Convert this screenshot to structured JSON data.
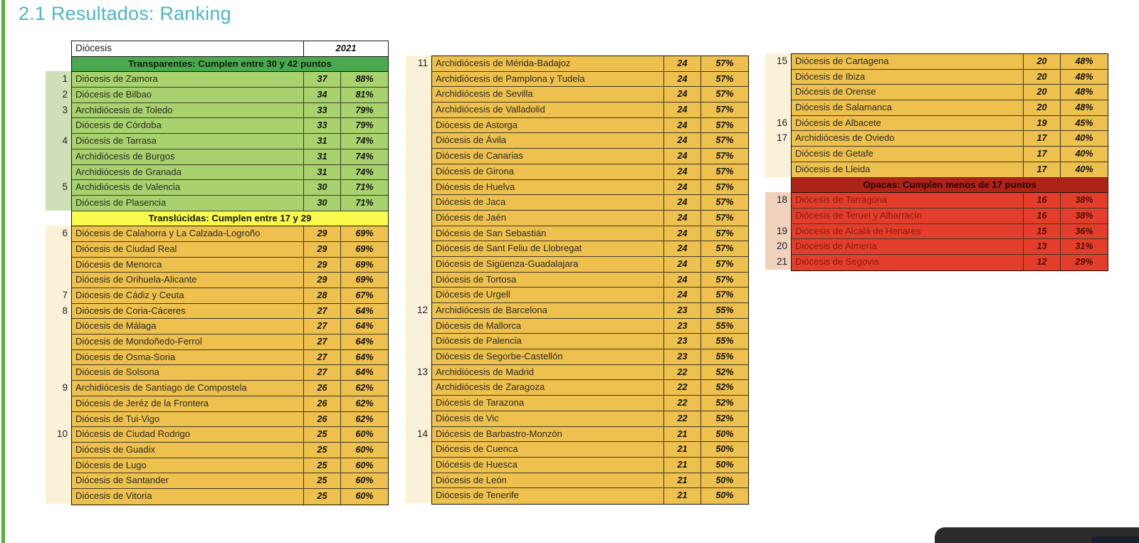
{
  "page": {
    "title": "2.1 Resultados: Ranking",
    "title_color": "#4cb5c8",
    "accent_bar_color": "#55b13e"
  },
  "tables": {
    "header": {
      "diocesis": "Diócesis",
      "year": "2021"
    },
    "sections": {
      "transparentes": {
        "label": "Transparentes: Cumplen entre 30 y 42 puntos",
        "class": "sec-green",
        "bg": "#4aa94e"
      },
      "translucidas": {
        "label": "Translúcidas: Cumplen entre 17 y 29",
        "class": "sec-yellow",
        "bg": "#fbfb4e"
      },
      "opacas": {
        "label": "Opacas: Cumplen menos de 17 puntos",
        "class": "sec-red",
        "bg": "#ae2317"
      }
    },
    "row_colors": {
      "green": "#a7d26e",
      "amber": "#eec04e",
      "red": "#e33d2b"
    },
    "columns": [
      {
        "name": "left",
        "segments": [
          {
            "type": "header"
          },
          {
            "type": "section",
            "section": "transparentes"
          },
          {
            "type": "rows",
            "class": "green",
            "gutter": "g-green",
            "rows": [
              {
                "rank": "1",
                "name": "Diócesis de Zamora",
                "score": "37",
                "pct": "88%"
              },
              {
                "rank": "2",
                "name": "Diócesis de Bilbao",
                "score": "34",
                "pct": "81%"
              },
              {
                "rank": "3",
                "name": "Archidiócesis de Toledo",
                "score": "33",
                "pct": "79%"
              },
              {
                "rank": "",
                "name": "Diócesis de Córdoba",
                "score": "33",
                "pct": "79%"
              },
              {
                "rank": "4",
                "name": "Diócesis de Tarrasa",
                "score": "31",
                "pct": "74%"
              },
              {
                "rank": "",
                "name": "Archidiócesis de Burgos",
                "score": "31",
                "pct": "74%"
              },
              {
                "rank": "",
                "name": "Archidiócesis de Granada",
                "score": "31",
                "pct": "74%"
              },
              {
                "rank": "5",
                "name": "Archidiócesis de Valencia",
                "score": "30",
                "pct": "71%"
              },
              {
                "rank": "",
                "name": "Diócesis de Plasencia",
                "score": "30",
                "pct": "71%"
              }
            ]
          },
          {
            "type": "section",
            "section": "translucidas"
          },
          {
            "type": "rows",
            "class": "amber",
            "gutter": "g-cream",
            "rows": [
              {
                "rank": "6",
                "name": "Diócesis de Calahorra y La Calzada-Logroño",
                "score": "29",
                "pct": "69%"
              },
              {
                "rank": "",
                "name": "Diócesis de Ciudad Real",
                "score": "29",
                "pct": "69%"
              },
              {
                "rank": "",
                "name": "Diócesis de Menorca",
                "score": "29",
                "pct": "69%"
              },
              {
                "rank": "",
                "name": "Diócesis de Orihuela-Alicante",
                "score": "29",
                "pct": "69%"
              },
              {
                "rank": "7",
                "name": "Diócesis de Cádiz y Ceuta",
                "score": "28",
                "pct": "67%"
              },
              {
                "rank": "8",
                "name": "Diócesis de Coria-Cáceres",
                "score": "27",
                "pct": "64%"
              },
              {
                "rank": "",
                "name": "Diócesis de Málaga",
                "score": "27",
                "pct": "64%"
              },
              {
                "rank": "",
                "name": "Diócesis de Mondoñedo-Ferrol",
                "score": "27",
                "pct": "64%"
              },
              {
                "rank": "",
                "name": "Diócesis de Osma-Soria",
                "score": "27",
                "pct": "64%"
              },
              {
                "rank": "",
                "name": "Diócesis de Solsona",
                "score": "27",
                "pct": "64%"
              },
              {
                "rank": "9",
                "name": "Archidiócesis de Santiago de Compostela",
                "score": "26",
                "pct": "62%"
              },
              {
                "rank": "",
                "name": "Diócesis de Jeréz de la Frontera",
                "score": "26",
                "pct": "62%"
              },
              {
                "rank": "",
                "name": "Diócesis de Tui-Vigo",
                "score": "26",
                "pct": "62%"
              },
              {
                "rank": "10",
                "name": "Diócesis de Ciudad Rodrigo",
                "score": "25",
                "pct": "60%"
              },
              {
                "rank": "",
                "name": "Diócesis de Guadix",
                "score": "25",
                "pct": "60%"
              },
              {
                "rank": "",
                "name": "Diócesis de Lugo",
                "score": "25",
                "pct": "60%"
              },
              {
                "rank": "",
                "name": "Diócesis de Santander",
                "score": "25",
                "pct": "60%"
              },
              {
                "rank": "",
                "name": "Diócesis de Vitoria",
                "score": "25",
                "pct": "60%"
              }
            ]
          }
        ]
      },
      {
        "name": "middle",
        "segments": [
          {
            "type": "rows",
            "class": "amber",
            "gutter": "g-cream",
            "rows": [
              {
                "rank": "11",
                "name": "Archidiócesis de Mérida-Badajoz",
                "score": "24",
                "pct": "57%"
              },
              {
                "rank": "",
                "name": "Archidiócesis de Pamplona y Tudela",
                "score": "24",
                "pct": "57%"
              },
              {
                "rank": "",
                "name": "Archidiócesis de Sevilla",
                "score": "24",
                "pct": "57%"
              },
              {
                "rank": "",
                "name": "Archidiócesis de Valladolid",
                "score": "24",
                "pct": "57%"
              },
              {
                "rank": "",
                "name": "Diócesis de Astorga",
                "score": "24",
                "pct": "57%"
              },
              {
                "rank": "",
                "name": "Diócesis de Ávila",
                "score": "24",
                "pct": "57%"
              },
              {
                "rank": "",
                "name": "Diócesis de Canarias",
                "score": "24",
                "pct": "57%"
              },
              {
                "rank": "",
                "name": "Diócesis de Girona",
                "score": "24",
                "pct": "57%"
              },
              {
                "rank": "",
                "name": "Diócesis de Huelva",
                "score": "24",
                "pct": "57%"
              },
              {
                "rank": "",
                "name": "Diócesis de Jaca",
                "score": "24",
                "pct": "57%"
              },
              {
                "rank": "",
                "name": "Diócesis de Jaén",
                "score": "24",
                "pct": "57%"
              },
              {
                "rank": "",
                "name": "Diócesis de San Sebastián",
                "score": "24",
                "pct": "57%"
              },
              {
                "rank": "",
                "name": "Diócesis de Sant Feliu de Llobregat",
                "score": "24",
                "pct": "57%"
              },
              {
                "rank": "",
                "name": "Diócesis de Sigüenza-Guadalajara",
                "score": "24",
                "pct": "57%"
              },
              {
                "rank": "",
                "name": "Diócesis de Tortosa",
                "score": "24",
                "pct": "57%"
              },
              {
                "rank": "",
                "name": "Diócesis de Urgell",
                "score": "24",
                "pct": "57%"
              },
              {
                "rank": "12",
                "name": "Archidiócesis de Barcelona",
                "score": "23",
                "pct": "55%"
              },
              {
                "rank": "",
                "name": "Diócesis de Mallorca",
                "score": "23",
                "pct": "55%"
              },
              {
                "rank": "",
                "name": "Diócesis de Palencia",
                "score": "23",
                "pct": "55%"
              },
              {
                "rank": "",
                "name": "Diócesis de Segorbe-Castellón",
                "score": "23",
                "pct": "55%"
              },
              {
                "rank": "13",
                "name": "Archidiócesis de Madrid",
                "score": "22",
                "pct": "52%"
              },
              {
                "rank": "",
                "name": "Archidiócesis de Zaragoza",
                "score": "22",
                "pct": "52%"
              },
              {
                "rank": "",
                "name": "Diócesis de Tarazona",
                "score": "22",
                "pct": "52%"
              },
              {
                "rank": "",
                "name": "Diócesis de Vic",
                "score": "22",
                "pct": "52%"
              },
              {
                "rank": "14",
                "name": "Diócesis de Barbastro-Monzón",
                "score": "21",
                "pct": "50%"
              },
              {
                "rank": "",
                "name": "Diócesis de Cuenca",
                "score": "21",
                "pct": "50%"
              },
              {
                "rank": "",
                "name": "Diócesis de Huesca",
                "score": "21",
                "pct": "50%"
              },
              {
                "rank": "",
                "name": "Diócesis de León",
                "score": "21",
                "pct": "50%"
              },
              {
                "rank": "",
                "name": "Diócesis de Tenerife",
                "score": "21",
                "pct": "50%"
              }
            ]
          }
        ]
      },
      {
        "name": "right",
        "segments": [
          {
            "type": "rows",
            "class": "amber",
            "gutter": "g-cream",
            "rows": [
              {
                "rank": "15",
                "name": "Diócesis de Cartagena",
                "score": "20",
                "pct": "48%"
              },
              {
                "rank": "",
                "name": "Diócesis de Ibiza",
                "score": "20",
                "pct": "48%"
              },
              {
                "rank": "",
                "name": "Diócesis de Orense",
                "score": "20",
                "pct": "48%"
              },
              {
                "rank": "",
                "name": "Diócesis de Salamanca",
                "score": "20",
                "pct": "48%"
              },
              {
                "rank": "16",
                "name": "Diócesis de Albacete",
                "score": "19",
                "pct": "45%"
              },
              {
                "rank": "17",
                "name": "Archidiócesis de Oviedo",
                "score": "17",
                "pct": "40%"
              },
              {
                "rank": "",
                "name": "Diócesis de Getafe",
                "score": "17",
                "pct": "40%"
              },
              {
                "rank": "",
                "name": "Diócesis de Lleida",
                "score": "17",
                "pct": "40%"
              }
            ]
          },
          {
            "type": "section",
            "section": "opacas"
          },
          {
            "type": "rows",
            "class": "red",
            "gutter": "g-pink",
            "rows": [
              {
                "rank": "18",
                "name": "Diócesis de Tarragona",
                "score": "16",
                "pct": "38%"
              },
              {
                "rank": "",
                "name": "Diócesis de Teruel y Albarracín",
                "score": "16",
                "pct": "38%"
              },
              {
                "rank": "19",
                "name": "Diócesis de Alcalá de Henares",
                "score": "15",
                "pct": "36%"
              },
              {
                "rank": "20",
                "name": "Diócesis de Almería",
                "score": "13",
                "pct": "31%"
              },
              {
                "rank": "21",
                "name": "Diócesis de Segovia",
                "score": "12",
                "pct": "29%"
              }
            ]
          }
        ]
      }
    ]
  },
  "bottom_panel": {
    "visible": true,
    "color": "#2d2c2c",
    "button_color": "#14212e"
  }
}
